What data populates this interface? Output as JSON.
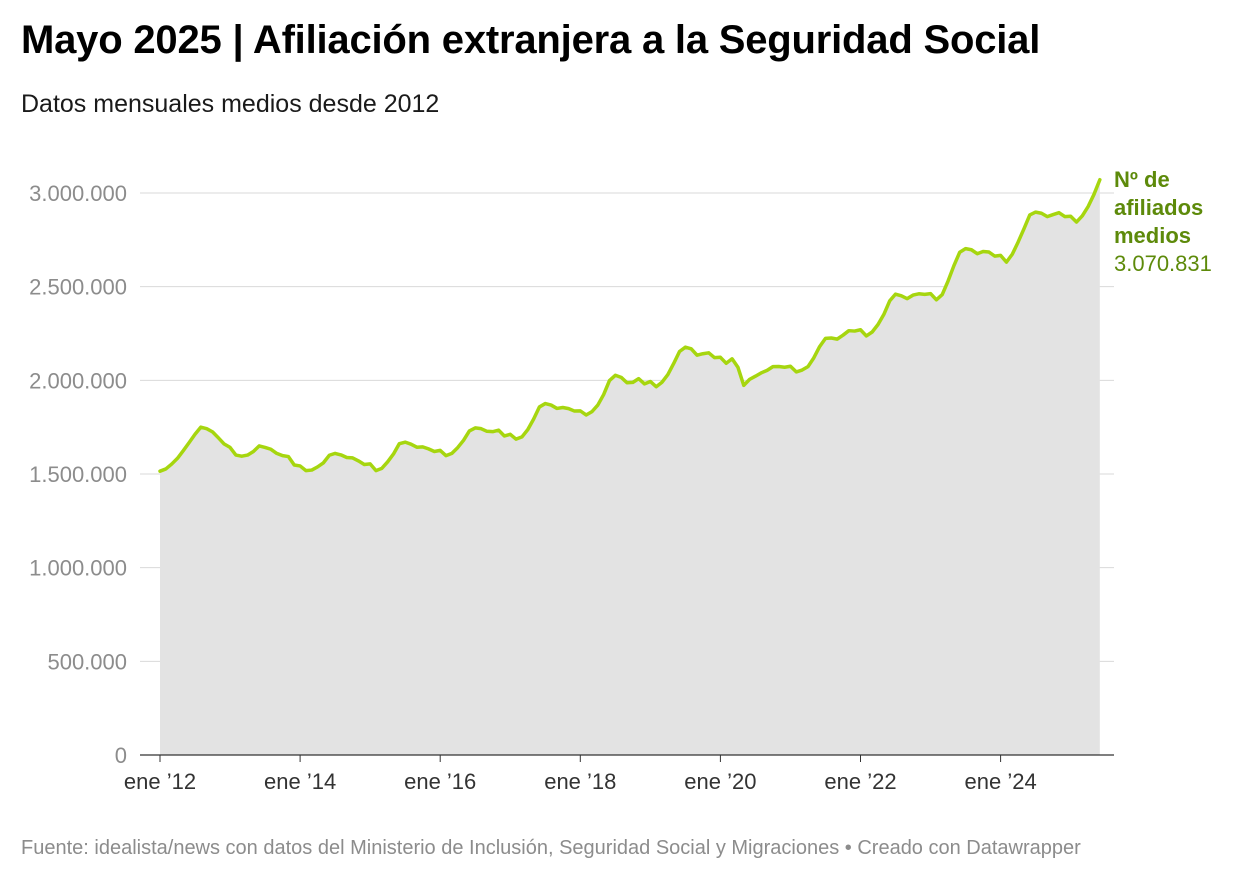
{
  "header": {
    "title": "Mayo 2025 | Afiliación extranjera a la Seguridad Social",
    "subtitle": "Datos mensuales medios desde 2012"
  },
  "footer": {
    "text": "Fuente: idealista/news con datos del Ministerio de Inclusión, Seguridad Social y Migraciones • Creado con Datawrapper"
  },
  "colors": {
    "line": "#a6d60f",
    "area": "#e3e3e3",
    "label": "#5d8a0a",
    "grid": "#d9d9d9",
    "tick": "#8c8c8c"
  },
  "chart_data": {
    "type": "area",
    "title": "Mayo 2025 | Afiliación extranjera a la Seguridad Social",
    "subtitle": "Datos mensuales medios desde 2012",
    "xlabel": "",
    "ylabel": "",
    "ylim": [
      0,
      3000000
    ],
    "y_ticks": [
      0,
      500000,
      1000000,
      1500000,
      2000000,
      2500000,
      3000000
    ],
    "y_tick_labels": [
      "0",
      "500.000",
      "1.000.000",
      "1.500.000",
      "2.000.000",
      "2.500.000",
      "3.000.000"
    ],
    "x_start": "2012-01",
    "x_end": "2025-05",
    "x_ticks": [
      "2012-01",
      "2014-01",
      "2016-01",
      "2018-01",
      "2020-01",
      "2022-01",
      "2024-01"
    ],
    "x_tick_labels": [
      "ene ’12",
      "ene ’14",
      "ene ’16",
      "ene ’18",
      "ene ’20",
      "ene ’22",
      "ene ’24"
    ],
    "grid": true,
    "series": [
      {
        "name": "Nº de afiliados medios",
        "last_value_label": "3.070.831",
        "values": [
          1515000,
          1527000,
          1553000,
          1584000,
          1625000,
          1668000,
          1712000,
          1750000,
          1742000,
          1725000,
          1693000,
          1660000,
          1642000,
          1601000,
          1595000,
          1601000,
          1620000,
          1650000,
          1642000,
          1632000,
          1610000,
          1598000,
          1593000,
          1548000,
          1543000,
          1518000,
          1521000,
          1538000,
          1560000,
          1600000,
          1610000,
          1602000,
          1588000,
          1586000,
          1570000,
          1551000,
          1554000,
          1518000,
          1530000,
          1565000,
          1607000,
          1662000,
          1670000,
          1659000,
          1643000,
          1645000,
          1634000,
          1620000,
          1626000,
          1598000,
          1610000,
          1641000,
          1680000,
          1730000,
          1746000,
          1742000,
          1728000,
          1726000,
          1734000,
          1703000,
          1712000,
          1686000,
          1698000,
          1737000,
          1793000,
          1858000,
          1876000,
          1868000,
          1850000,
          1855000,
          1849000,
          1836000,
          1837000,
          1815000,
          1833000,
          1868000,
          1924000,
          1999000,
          2027000,
          2016000,
          1987000,
          1989000,
          2009000,
          1981000,
          1994000,
          1966000,
          1990000,
          2031000,
          2090000,
          2154000,
          2177000,
          2168000,
          2134000,
          2142000,
          2147000,
          2121000,
          2123000,
          2091000,
          2115000,
          2070000,
          1973000,
          2005000,
          2022000,
          2040000,
          2053000,
          2073000,
          2074000,
          2070000,
          2075000,
          2045000,
          2055000,
          2073000,
          2120000,
          2180000,
          2224000,
          2226000,
          2220000,
          2241000,
          2265000,
          2263000,
          2270000,
          2237000,
          2258000,
          2298000,
          2352000,
          2424000,
          2460000,
          2451000,
          2436000,
          2455000,
          2462000,
          2459000,
          2463000,
          2430000,
          2458000,
          2530000,
          2612000,
          2684000,
          2703000,
          2697000,
          2676000,
          2688000,
          2685000,
          2663000,
          2667000,
          2631000,
          2673000,
          2738000,
          2809000,
          2883000,
          2898000,
          2892000,
          2874000,
          2885000,
          2895000,
          2874000,
          2876000,
          2845000,
          2878000,
          2928000,
          2993000,
          3070831
        ]
      }
    ]
  }
}
